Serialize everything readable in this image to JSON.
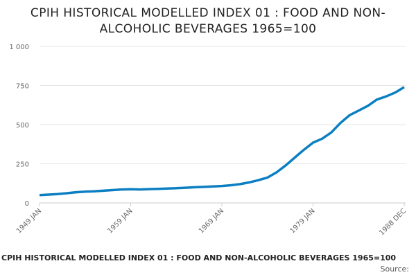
{
  "chart_data": {
    "type": "line",
    "title": "CPIH HISTORICAL MODELLED INDEX 01 : FOOD AND NON-ALCOHOLIC BEVERAGES 1965=100",
    "caption": "CPIH HISTORICAL MODELLED INDEX 01 : FOOD AND NON-ALCOHOLIC BEVERAGES 1965=100",
    "source": "Source:",
    "categories": [
      "1949 JAN",
      null,
      null,
      null,
      null,
      null,
      null,
      null,
      null,
      null,
      "1959 JAN",
      null,
      null,
      null,
      null,
      null,
      null,
      null,
      null,
      null,
      "1969 JAN",
      null,
      null,
      null,
      null,
      null,
      null,
      null,
      null,
      null,
      "1979 JAN",
      null,
      null,
      null,
      null,
      null,
      null,
      null,
      null,
      null,
      "1988 DEC"
    ],
    "values": [
      50,
      53,
      56,
      62,
      68,
      72,
      74,
      78,
      82,
      86,
      87,
      86,
      88,
      90,
      92,
      94,
      97,
      100,
      102,
      105,
      108,
      113,
      120,
      131,
      145,
      162,
      195,
      240,
      290,
      340,
      385,
      410,
      450,
      510,
      560,
      590,
      620,
      660,
      680,
      705,
      740
    ],
    "color": "#0b7fc1",
    "ylim": [
      0,
      1000
    ],
    "yticks": [
      0,
      250,
      500,
      750,
      {
        "value": 1000,
        "label": "1 000"
      }
    ],
    "grid": true
  }
}
